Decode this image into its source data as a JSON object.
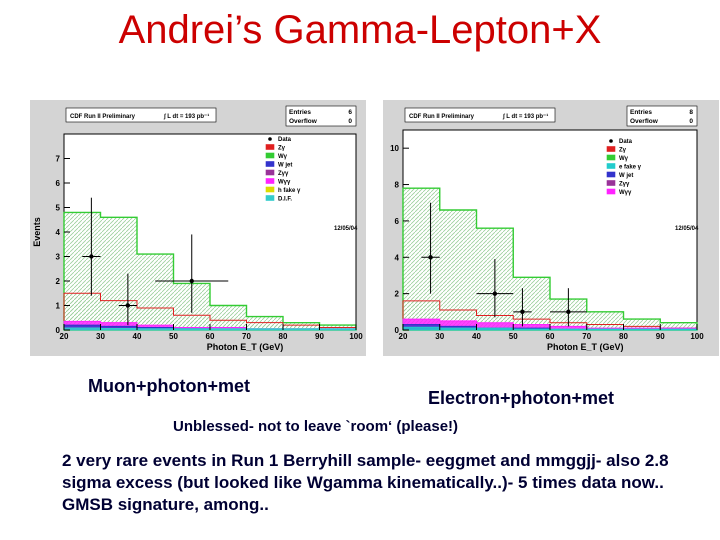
{
  "title": "Andrei’s Gamma-Lepton+X",
  "captions": {
    "left": "Muon+photon+met",
    "right": "Electron+photon+met",
    "note": "Unblessed- not to leave `room‘ (please!)"
  },
  "paragraph": "2 very rare events in Run 1 Berryhill sample- eeggmet and mmggjj- also 2.8 sigma excess (but looked like Wgamma kinematically..)- 5 times data now.. GMSB signature, among..",
  "colors": {
    "title": "#cc0000",
    "text": "#000033",
    "data": "#000000",
    "Zg": "#e02020",
    "Wg": "#33cc33",
    "Wjet": "#3333cc",
    "Zgg": "#993399",
    "Wgg": "#ff22ff",
    "hfake": "#dddd00",
    "DIF": "#33cccc",
    "efake": "#22cccc"
  },
  "chart_data": [
    {
      "type": "histogram",
      "header": "CDF Run II Preliminary",
      "lumi_text": "∫ L dt = 193 pb⁻¹",
      "stats": [
        {
          "label": "Entries",
          "value": "6"
        },
        {
          "label": "Overflow",
          "value": "0"
        }
      ],
      "date_stamp": "12/05/04",
      "xlabel": "Photon E_T (GeV)",
      "ylabel": "Events",
      "xlim": [
        20,
        100
      ],
      "ylim": [
        0,
        8
      ],
      "x_ticks": [
        "20",
        "30",
        "40",
        "50",
        "60",
        "70",
        "80",
        "90",
        "100"
      ],
      "y_ticks": [
        "0",
        "1",
        "2",
        "3",
        "4",
        "5",
        "6",
        "7"
      ],
      "legend": [
        "Data",
        "Zγ",
        "Wγ",
        "W jet",
        "Zγγ",
        "Wγγ",
        "h fake γ",
        "D.I.F."
      ],
      "bin_edges": [
        20,
        25,
        30,
        35,
        40,
        45,
        50,
        55,
        60,
        65,
        70,
        75,
        80,
        85,
        90,
        95,
        100
      ],
      "data_points": [
        {
          "x": 27.5,
          "y": 3.0,
          "xerr": 2.5,
          "yerr_low": 1.6,
          "yerr_high": 2.4
        },
        {
          "x": 37.5,
          "y": 1.0,
          "xerr": 2.5,
          "yerr_low": 0.8,
          "yerr_high": 1.3
        },
        {
          "x": 55,
          "y": 2.0,
          "xerr": 10,
          "yerr_low": 1.3,
          "yerr_high": 1.9
        }
      ],
      "series": [
        {
          "name": "Wγ",
          "values": [
            4.8,
            4.8,
            4.6,
            4.6,
            3.1,
            3.1,
            1.9,
            1.9,
            1.0,
            1.0,
            0.55,
            0.55,
            0.3,
            0.3,
            0.2,
            0.2
          ]
        },
        {
          "name": "Zγ",
          "values": [
            1.5,
            1.5,
            1.2,
            1.2,
            0.9,
            0.9,
            0.6,
            0.6,
            0.4,
            0.4,
            0.3,
            0.3,
            0.2,
            0.2,
            0.1,
            0.1
          ]
        },
        {
          "name": "Wγγ",
          "values": [
            0.35,
            0.35,
            0.3,
            0.3,
            0.2,
            0.2,
            0.1,
            0.1,
            0.1,
            0.1,
            0.05,
            0.05,
            0.05,
            0.05,
            0.05,
            0.05
          ]
        },
        {
          "name": "W jet",
          "values": [
            0.2,
            0.2,
            0.15,
            0.15,
            0.1,
            0.1,
            0.05,
            0.05,
            0,
            0,
            0,
            0,
            0,
            0,
            0,
            0
          ]
        },
        {
          "name": "D.I.F.",
          "values": [
            0.08,
            0.08,
            0.06,
            0.06,
            0.05,
            0.05,
            0.05,
            0.05,
            0.05,
            0.05,
            0.05,
            0.05,
            0.05,
            0.05,
            0.05,
            0.05
          ]
        }
      ]
    },
    {
      "type": "histogram",
      "header": "CDF Run II Preliminary",
      "lumi_text": "∫ L dt = 193 pb⁻¹",
      "stats": [
        {
          "label": "Entries",
          "value": "8"
        },
        {
          "label": "Overflow",
          "value": "0"
        }
      ],
      "date_stamp": "12/05/04",
      "xlabel": "Photon E_T (GeV)",
      "ylabel": "",
      "xlim": [
        20,
        100
      ],
      "ylim": [
        0,
        11
      ],
      "x_ticks": [
        "20",
        "30",
        "40",
        "50",
        "60",
        "70",
        "80",
        "90",
        "100"
      ],
      "y_ticks": [
        "0",
        "2",
        "4",
        "6",
        "8",
        "10"
      ],
      "legend": [
        "Data",
        "Zγ",
        "Wγ",
        "e fake γ",
        "W jet",
        "Zγγ",
        "Wγγ"
      ],
      "bin_edges": [
        20,
        25,
        30,
        35,
        40,
        45,
        50,
        55,
        60,
        65,
        70,
        75,
        80,
        85,
        90,
        95,
        100
      ],
      "data_points": [
        {
          "x": 27.5,
          "y": 4.0,
          "xerr": 2.5,
          "yerr_low": 2.0,
          "yerr_high": 3.0
        },
        {
          "x": 45,
          "y": 2.0,
          "xerr": 5,
          "yerr_low": 1.3,
          "yerr_high": 1.9
        },
        {
          "x": 52.5,
          "y": 1.0,
          "xerr": 2.5,
          "yerr_low": 0.8,
          "yerr_high": 1.3
        },
        {
          "x": 65,
          "y": 1.0,
          "xerr": 5,
          "yerr_low": 0.8,
          "yerr_high": 1.3
        }
      ],
      "series": [
        {
          "name": "Wγ",
          "values": [
            7.8,
            7.8,
            6.6,
            6.6,
            5.6,
            5.6,
            2.9,
            2.9,
            1.7,
            1.7,
            1.0,
            1.0,
            0.6,
            0.6,
            0.4,
            0.4
          ]
        },
        {
          "name": "Zγ",
          "values": [
            1.6,
            1.6,
            1.1,
            1.1,
            0.8,
            0.8,
            0.6,
            0.6,
            0.4,
            0.4,
            0.3,
            0.3,
            0.2,
            0.2,
            0.1,
            0.1
          ]
        },
        {
          "name": "Wγγ",
          "values": [
            0.6,
            0.6,
            0.5,
            0.5,
            0.4,
            0.4,
            0.3,
            0.3,
            0.2,
            0.2,
            0.1,
            0.1,
            0.1,
            0.1,
            0.1,
            0.1
          ]
        },
        {
          "name": "W jet",
          "values": [
            0.3,
            0.3,
            0.2,
            0.2,
            0.1,
            0.1,
            0.1,
            0.1,
            0,
            0,
            0,
            0,
            0,
            0,
            0,
            0
          ]
        },
        {
          "name": "e fake γ",
          "values": [
            0.15,
            0.15,
            0.1,
            0.1,
            0.1,
            0.1,
            0.05,
            0.05,
            0.05,
            0.05,
            0.05,
            0.05,
            0.05,
            0.05,
            0.05,
            0.05
          ]
        }
      ]
    }
  ]
}
